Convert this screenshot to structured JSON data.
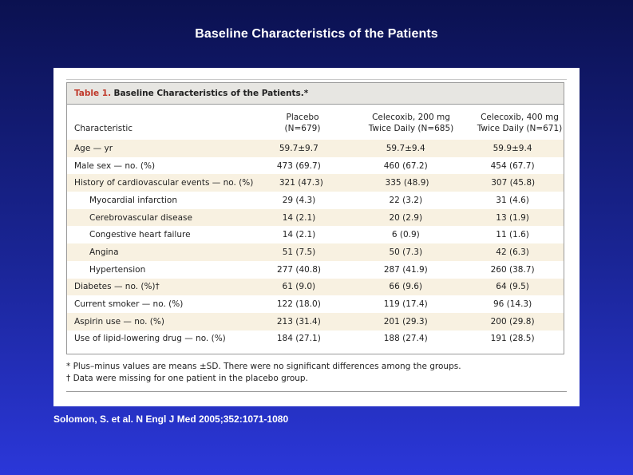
{
  "slide_title": "Baseline Characteristics of the Patients",
  "table": {
    "number": "Table 1.",
    "caption": "Baseline Characteristics of the Patients.*",
    "headers": {
      "characteristic": "Characteristic",
      "col1": [
        "Placebo",
        "(N=679)"
      ],
      "col2": [
        "Celecoxib, 200 mg",
        "Twice Daily (N=685)"
      ],
      "col3": [
        "Celecoxib, 400 mg",
        "Twice Daily (N=671)"
      ]
    },
    "rows": [
      {
        "label": "Age — yr",
        "values": [
          "59.7±9.7",
          "59.7±9.4",
          "59.9±9.4"
        ],
        "indent": false
      },
      {
        "label": "Male sex — no. (%)",
        "values": [
          "473 (69.7)",
          "460 (67.2)",
          "454 (67.7)"
        ],
        "indent": false
      },
      {
        "label": "History of cardiovascular events — no. (%)",
        "values": [
          "321 (47.3)",
          "335 (48.9)",
          "307 (45.8)"
        ],
        "indent": false
      },
      {
        "label": "Myocardial infarction",
        "values": [
          "29 (4.3)",
          "22 (3.2)",
          "31 (4.6)"
        ],
        "indent": true
      },
      {
        "label": "Cerebrovascular disease",
        "values": [
          "14 (2.1)",
          "20 (2.9)",
          "13 (1.9)"
        ],
        "indent": true
      },
      {
        "label": "Congestive heart failure",
        "values": [
          "14 (2.1)",
          "6 (0.9)",
          "11 (1.6)"
        ],
        "indent": true
      },
      {
        "label": "Angina",
        "values": [
          "51 (7.5)",
          "50 (7.3)",
          "42 (6.3)"
        ],
        "indent": true
      },
      {
        "label": "Hypertension",
        "values": [
          "277 (40.8)",
          "287 (41.9)",
          "260 (38.7)"
        ],
        "indent": true
      },
      {
        "label": "Diabetes — no. (%)†",
        "values": [
          "61 (9.0)",
          "66 (9.6)",
          "64 (9.5)"
        ],
        "indent": false
      },
      {
        "label": "Current smoker — no. (%)",
        "values": [
          "122 (18.0)",
          "119 (17.4)",
          "96 (14.3)"
        ],
        "indent": false
      },
      {
        "label": "Aspirin use — no. (%)",
        "values": [
          "213 (31.4)",
          "201 (29.3)",
          "200 (29.8)"
        ],
        "indent": false
      },
      {
        "label": "Use of lipid-lowering drug — no. (%)",
        "values": [
          "184 (27.1)",
          "188 (27.4)",
          "191 (28.5)"
        ],
        "indent": false
      }
    ],
    "footnotes": [
      "* Plus–minus values are means ±SD. There were no significant differences among the groups.",
      "† Data were missing for one patient in the placebo group."
    ]
  },
  "citation": "Solomon, S. et al. N Engl J Med 2005;352:1071-1080",
  "colors": {
    "caption_number": "#c0392b",
    "row_shade": "#f8f1e1",
    "caption_bar": "#e7e6e2"
  }
}
